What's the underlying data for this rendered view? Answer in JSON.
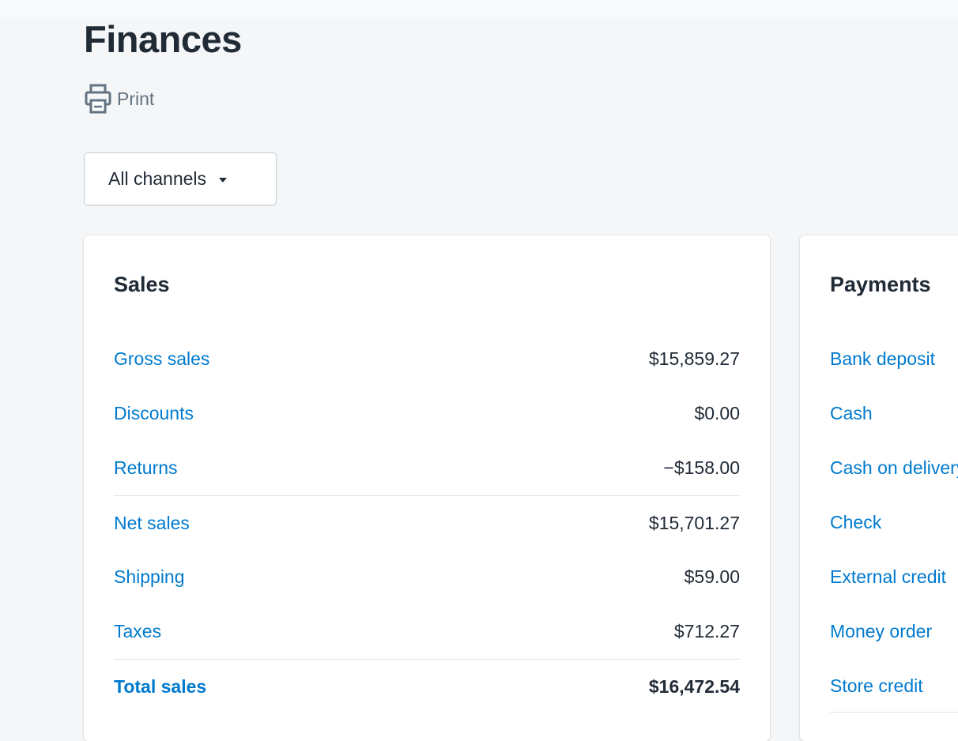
{
  "page": {
    "title": "Finances",
    "print_label": "Print",
    "print_icon": "printer-icon",
    "channel_select": {
      "selected": "All channels",
      "icon": "caret-down-icon"
    }
  },
  "colors": {
    "link": "#007ace",
    "text": "#212b36",
    "muted": "#637381",
    "background": "#f4f6f8",
    "card": "#ffffff",
    "divider": "#dfe3e8"
  },
  "sales": {
    "title": "Sales",
    "rows": [
      {
        "label": "Gross sales",
        "value": "$15,859.27"
      },
      {
        "label": "Discounts",
        "value": "$0.00"
      },
      {
        "label": "Returns",
        "value": "−$158.00"
      },
      {
        "label": "Net sales",
        "value": "$15,701.27"
      },
      {
        "label": "Shipping",
        "value": "$59.00"
      },
      {
        "label": "Taxes",
        "value": "$712.27"
      },
      {
        "label": "Total sales",
        "value": "$16,472.54"
      }
    ]
  },
  "payments": {
    "title": "Payments",
    "rows": [
      {
        "label": "Bank deposit"
      },
      {
        "label": "Cash"
      },
      {
        "label": "Cash on delivery"
      },
      {
        "label": "Check"
      },
      {
        "label": "External credit"
      },
      {
        "label": "Money order"
      },
      {
        "label": "Store credit"
      }
    ]
  }
}
